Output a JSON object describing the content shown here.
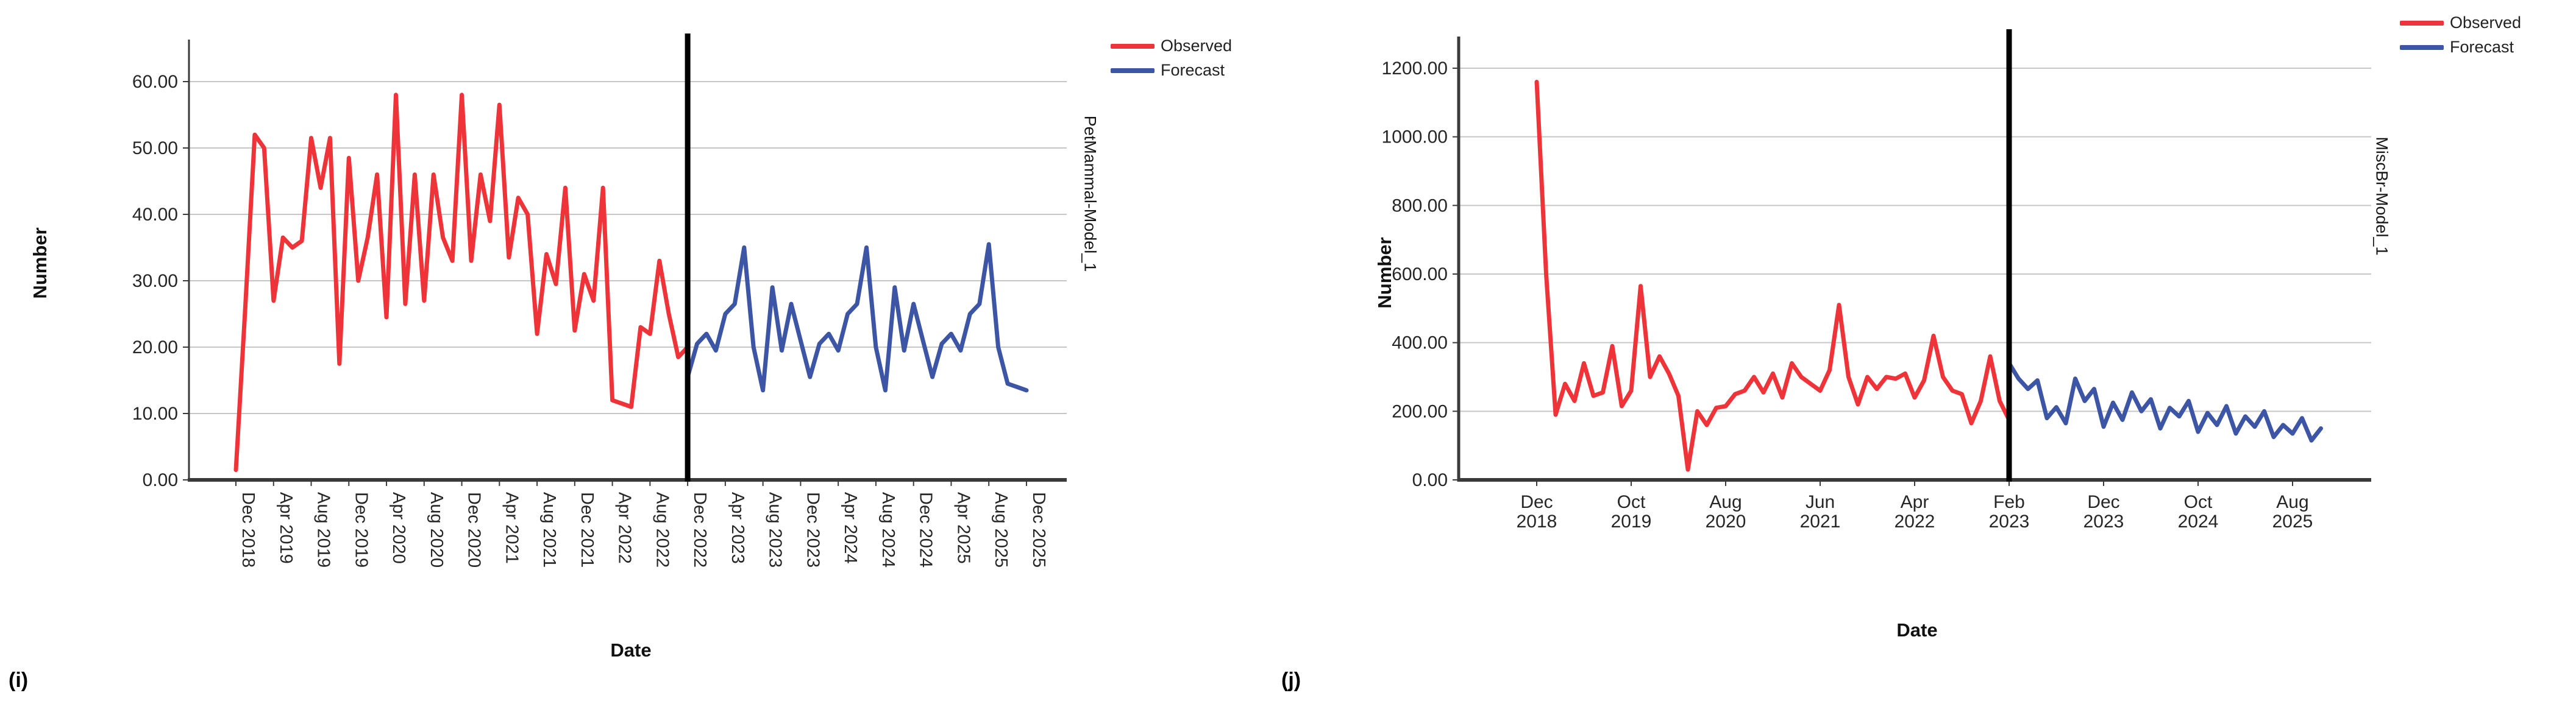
{
  "colors": {
    "observed": "#EE3439",
    "forecast": "#3D55A5",
    "grid": "#C6C6C6",
    "axis": "#3A3A3A",
    "divider": "#000000",
    "tick_text": "#262626"
  },
  "legend": {
    "observed_label": "Observed",
    "forecast_label": "Forecast"
  },
  "chart_data": [
    {
      "id": "i",
      "type": "line",
      "panel_label": "(i)",
      "title_right": "PetMammal-Model_1",
      "xlabel": "Date",
      "ylabel": "Number",
      "ylim": [
        0,
        65
      ],
      "yticks": [
        0,
        10,
        20,
        30,
        40,
        50,
        60
      ],
      "ytick_labels": [
        "0.00",
        "10.00",
        "20.00",
        "30.00",
        "40.00",
        "50.00",
        "60.00"
      ],
      "x_unit": "month",
      "x_start": "Dec 2018",
      "x_end": "Dec 2025",
      "xtick_step_months": 4,
      "xtick_labels": [
        "Dec 2018",
        "Apr 2019",
        "Aug 2019",
        "Dec 2019",
        "Apr 2020",
        "Aug 2020",
        "Dec 2020",
        "Apr 2021",
        "Aug 2021",
        "Dec 2021",
        "Apr 2022",
        "Aug 2022",
        "Dec 2022",
        "Apr 2023",
        "Aug 2023",
        "Dec 2023",
        "Apr 2024",
        "Aug 2024",
        "Dec 2024",
        "Apr 2025",
        "Aug 2025",
        "Dec 2025"
      ],
      "x_labels_rotated": true,
      "grid": true,
      "legend_position": "top-right",
      "divider_month": 48,
      "divider_at": "Dec 2022",
      "series": [
        {
          "name": "Observed",
          "color_key": "observed",
          "start_month": 0,
          "values": [
            1.5,
            26,
            52,
            50,
            27,
            36.5,
            35,
            36,
            51.5,
            44,
            51.5,
            17.5,
            48.5,
            30,
            36.5,
            46,
            24.5,
            58,
            26.5,
            46,
            27,
            46,
            36.5,
            33,
            58,
            33,
            46,
            39,
            56.5,
            33.5,
            42.5,
            40,
            22,
            34,
            29.5,
            44,
            22.5,
            31,
            27,
            44,
            12,
            11.5,
            11,
            23,
            22,
            33,
            25,
            18.5,
            20
          ]
        },
        {
          "name": "Forecast",
          "color_key": "forecast",
          "start_month": 48,
          "values": [
            15.5,
            20.5,
            22,
            19.5,
            25,
            26.5,
            35,
            20,
            13.5,
            29,
            19.5,
            26.5,
            21,
            15.5,
            20.5,
            22,
            19.5,
            25,
            26.5,
            35,
            20,
            13.5,
            29,
            19.5,
            26.5,
            21,
            15.5,
            20.5,
            22,
            19.5,
            25,
            26.5,
            35.5,
            20,
            14.5,
            14,
            13.5
          ]
        }
      ]
    },
    {
      "id": "j",
      "type": "line",
      "panel_label": "(j)",
      "title_right": "MiscBr-Model_1",
      "xlabel": "Date",
      "ylabel": "Number",
      "ylim": [
        0,
        1300
      ],
      "yticks": [
        0,
        200,
        400,
        600,
        800,
        1000,
        1200
      ],
      "ytick_labels": [
        "0.00",
        "200.00",
        "400.00",
        "600.00",
        "800.00",
        "1000.00",
        "1200.00"
      ],
      "x_unit": "month",
      "x_start": "Dec 2018",
      "x_end": "Nov 2025",
      "xtick_step_months": 10,
      "xtick_labels": [
        "Dec 2018",
        "Oct 2019",
        "Aug 2020",
        "Jun 2021",
        "Apr 2022",
        "Feb 2023",
        "Dec 2023",
        "Oct 2024",
        "Aug 2025"
      ],
      "x_labels_rotated": false,
      "grid": true,
      "legend_position": "top-right",
      "divider_month": 50,
      "divider_at": "Feb 2023",
      "series": [
        {
          "name": "Observed",
          "color_key": "observed",
          "start_month": 0,
          "values": [
            1160,
            600,
            190,
            280,
            230,
            340,
            245,
            255,
            390,
            215,
            260,
            565,
            300,
            360,
            310,
            245,
            30,
            200,
            160,
            210,
            215,
            250,
            260,
            300,
            255,
            310,
            240,
            340,
            300,
            280,
            260,
            320,
            510,
            300,
            220,
            300,
            265,
            300,
            295,
            310,
            240,
            290,
            420,
            300,
            260,
            250,
            165,
            230,
            360,
            230,
            175
          ]
        },
        {
          "name": "Forecast",
          "color_key": "forecast",
          "start_month": 50,
          "values": [
            340,
            295,
            265,
            290,
            180,
            212,
            165,
            295,
            230,
            265,
            155,
            225,
            175,
            255,
            200,
            235,
            150,
            210,
            185,
            230,
            140,
            195,
            160,
            215,
            135,
            185,
            155,
            200,
            125,
            160,
            135,
            180,
            115,
            150
          ]
        }
      ]
    }
  ]
}
